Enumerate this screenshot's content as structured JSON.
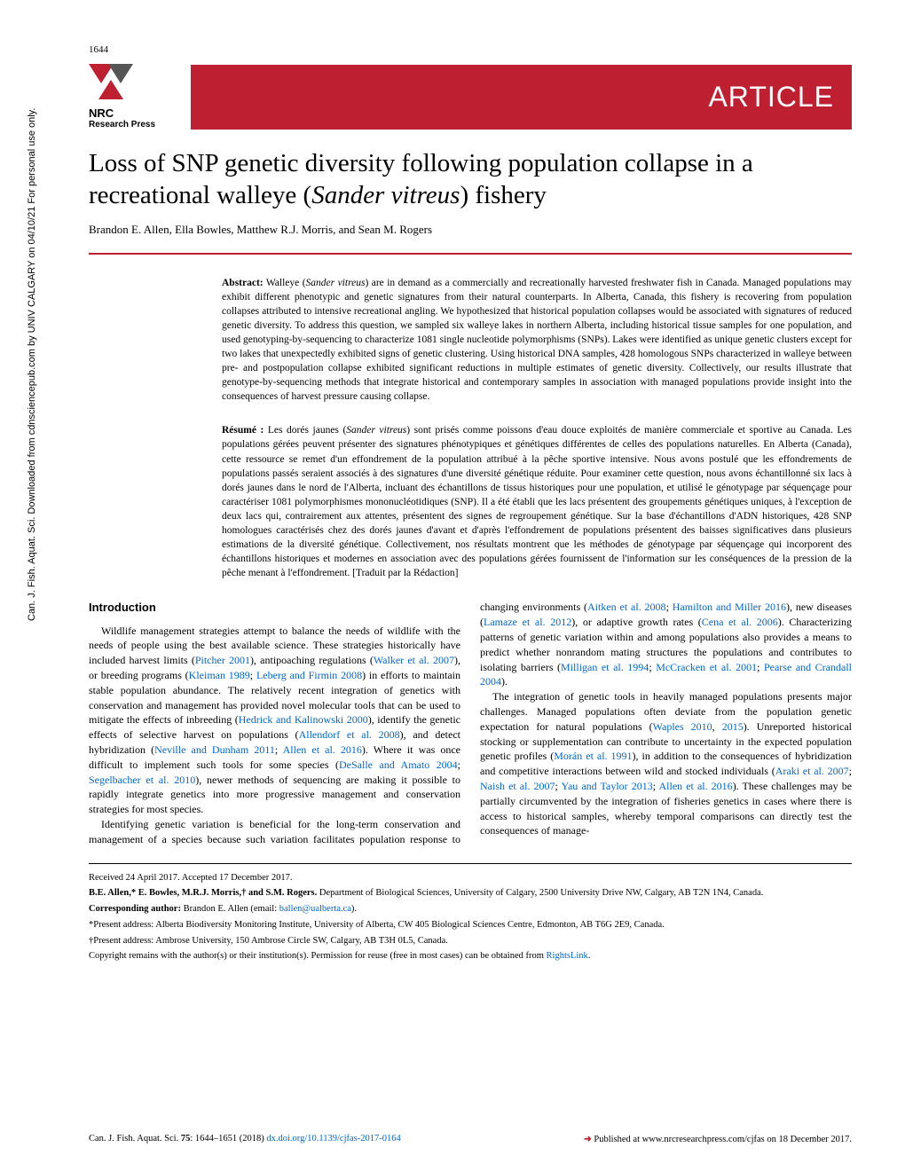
{
  "page_number": "1644",
  "sidebar": "Can. J. Fish. Aquat. Sci. Downloaded from cdnsciencepub.com by UNIV CALGARY on 04/10/21\nFor personal use only.",
  "logo": {
    "name": "NRC",
    "subtitle": "Research Press"
  },
  "banner": "ARTICLE",
  "title": "Loss of SNP genetic diversity following population collapse in a recreational walleye (Sander vitreus) fishery",
  "authors": "Brandon E. Allen, Ella Bowles, Matthew R.J. Morris, and Sean M. Rogers",
  "abstract_label": "Abstract:",
  "abstract": "Walleye (Sander vitreus) are in demand as a commercially and recreationally harvested freshwater fish in Canada. Managed populations may exhibit different phenotypic and genetic signatures from their natural counterparts. In Alberta, Canada, this fishery is recovering from population collapses attributed to intensive recreational angling. We hypothesized that historical population collapses would be associated with signatures of reduced genetic diversity. To address this question, we sampled six walleye lakes in northern Alberta, including historical tissue samples for one population, and used genotyping-by-sequencing to characterize 1081 single nucleotide polymorphisms (SNPs). Lakes were identified as unique genetic clusters except for two lakes that unexpectedly exhibited signs of genetic clustering. Using historical DNA samples, 428 homologous SNPs characterized in walleye between pre- and postpopulation collapse exhibited significant reductions in multiple estimates of genetic diversity. Collectively, our results illustrate that genotype-by-sequencing methods that integrate historical and contemporary samples in association with managed populations provide insight into the consequences of harvest pressure causing collapse.",
  "resume_label": "Résumé :",
  "resume": "Les dorés jaunes (Sander vitreus) sont prisés comme poissons d'eau douce exploités de manière commerciale et sportive au Canada. Les populations gérées peuvent présenter des signatures phénotypiques et génétiques différentes de celles des populations naturelles. En Alberta (Canada), cette ressource se remet d'un effondrement de la population attribué à la pêche sportive intensive. Nous avons postulé que les effondrements de populations passés seraient associés à des signatures d'une diversité génétique réduite. Pour examiner cette question, nous avons échantillonné six lacs à dorés jaunes dans le nord de l'Alberta, incluant des échantillons de tissus historiques pour une population, et utilisé le génotypage par séquençage pour caractériser 1081 polymorphismes mononucléotidiques (SNP). Il a été établi que les lacs présentent des groupements génétiques uniques, à l'exception de deux lacs qui, contrairement aux attentes, présentent des signes de regroupement génétique. Sur la base d'échantillons d'ADN historiques, 428 SNP homologues caractérisés chez des dorés jaunes d'avant et d'après l'effondrement de populations présentent des baisses significatives dans plusieurs estimations de la diversité génétique. Collectivement, nos résultats montrent que les méthodes de génotypage par séquençage qui incorporent des échantillons historiques et modernes en association avec des populations gérées fournissent de l'information sur les conséquences de la pression de la pêche menant à l'effondrement. [Traduit par la Rédaction]",
  "intro_heading": "Introduction",
  "intro_p1": "Wildlife management strategies attempt to balance the needs of wildlife with the needs of people using the best available science. These strategies historically have included harvest limits (Pitcher 2001), antipoaching regulations (Walker et al. 2007), or breeding programs (Kleiman 1989; Leberg and Firmin 2008) in efforts to maintain stable population abundance. The relatively recent integration of genetics with conservation and management has provided novel molecular tools that can be used to mitigate the effects of inbreeding (Hedrick and Kalinowski 2000), identify the genetic effects of selective harvest on populations (Allendorf et al. 2008), and detect hybridization (Neville and Dunham 2011; Allen et al. 2016). Where it was once difficult to implement such tools for some species (DeSalle and Amato 2004; Segelbacher et al. 2010), newer methods of sequencing are making it possible to rapidly integrate genetics into more progressive management and conservation strategies for most species.",
  "intro_p2": "Identifying genetic variation is beneficial for the long-term conservation and management of a species because such variation facilitates population response to changing environments (Aitken et al. 2008; Hamilton and Miller 2016), new diseases (Lamaze et al. 2012), or adaptive growth rates (Cena et al. 2006). Characterizing patterns of genetic variation within and among populations also provides a means to predict whether nonrandom mating structures the populations and contributes to isolating barriers (Milligan et al. 1994; McCracken et al. 2001; Pearse and Crandall 2004).",
  "intro_p3": "The integration of genetic tools in heavily managed populations presents major challenges. Managed populations often deviate from the population genetic expectation for natural populations (Waples 2010, 2015). Unreported historical stocking or supplementation can contribute to uncertainty in the expected population genetic profiles (Morán et al. 1991), in addition to the consequences of hybridization and competitive interactions between wild and stocked individuals (Araki et al. 2007; Naish et al. 2007; Yau and Taylor 2013; Allen et al. 2016). These challenges may be partially circumvented by the integration of fisheries genetics in cases where there is access to historical samples, whereby temporal comparisons can directly test the consequences of manage-",
  "footer": {
    "received": "Received 24 April 2017. Accepted 17 December 2017.",
    "authors_affil": "B.E. Allen,* E. Bowles, M.R.J. Morris,† and S.M. Rogers. Department of Biological Sciences, University of Calgary, 2500 University Drive NW, Calgary, AB T2N 1N4, Canada.",
    "corresponding_label": "Corresponding author:",
    "corresponding": "Brandon E. Allen (email: ballen@ualberta.ca).",
    "present1": "*Present address: Alberta Biodiversity Monitoring Institute, University of Alberta, CW 405 Biological Sciences Centre, Edmonton, AB T6G 2E9, Canada.",
    "present2": "†Present address: Ambrose University, 150 Ambrose Circle SW, Calgary, AB T3H 0L5, Canada.",
    "copyright": "Copyright remains with the author(s) or their institution(s). Permission for reuse (free in most cases) can be obtained from RightsLink."
  },
  "bottom": {
    "citation": "Can. J. Fish. Aquat. Sci. 75: 1644–1651 (2018) dx.doi.org/10.1139/cjfas-2017-0164",
    "published": "Published at www.nrcresearchpress.com/cjfas on 18 December 2017."
  },
  "colors": {
    "red": "#bf2031",
    "link": "#0066cc"
  }
}
